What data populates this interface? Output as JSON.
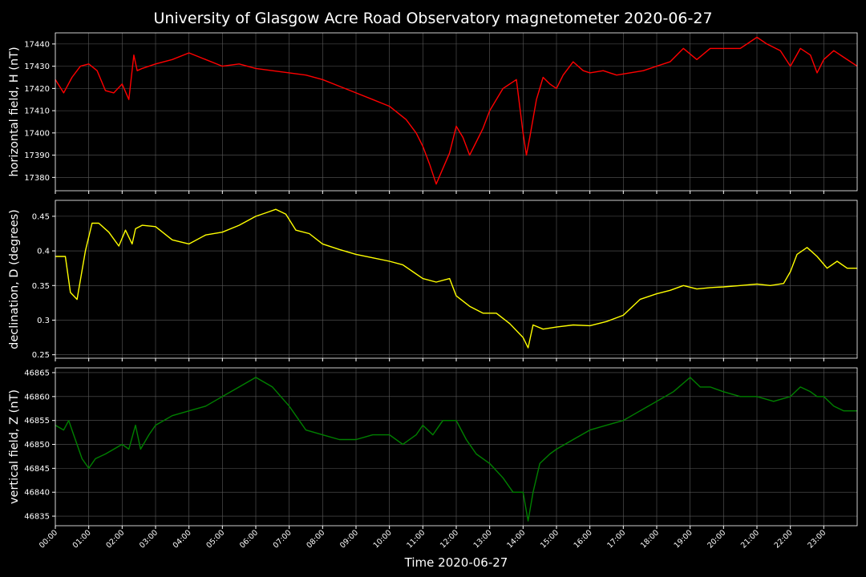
{
  "title": "University of Glasgow Acre Road Observatory magnetometer 2020-06-27",
  "colors": {
    "background": "#000000",
    "text": "#ffffff",
    "grid": "#5a5a5a"
  },
  "chart_data": [
    {
      "type": "line",
      "ylabel": "horizontal field, H (nT)",
      "color": "#ff0000",
      "ylim": [
        17374,
        17445
      ],
      "yticks": [
        17380,
        17390,
        17400,
        17410,
        17420,
        17430,
        17440
      ],
      "grid": true,
      "series": [
        {
          "x": [
            0,
            0.25,
            0.5,
            0.75,
            1.0,
            1.25,
            1.5,
            1.75,
            2.0,
            2.2,
            2.35,
            2.45,
            2.6,
            3.0,
            3.5,
            4.0,
            4.5,
            5.0,
            5.5,
            6.0,
            6.5,
            7.0,
            7.5,
            8.0,
            8.5,
            9.0,
            9.5,
            10.0,
            10.5,
            10.8,
            11.0,
            11.2,
            11.4,
            11.6,
            11.8,
            12.0,
            12.2,
            12.4,
            12.6,
            12.8,
            13.0,
            13.4,
            13.8,
            14.0,
            14.1,
            14.2,
            14.4,
            14.6,
            14.8,
            15.0,
            15.2,
            15.5,
            15.8,
            16.0,
            16.4,
            16.8,
            17.2,
            17.6,
            18.0,
            18.4,
            18.8,
            19.2,
            19.6,
            20.0,
            20.5,
            21.0,
            21.3,
            21.7,
            22.0,
            22.3,
            22.6,
            22.8,
            23.0,
            23.3,
            23.6,
            24.0
          ],
          "y": [
            17424,
            17418,
            17425,
            17430,
            17431,
            17428,
            17419,
            17418,
            17422,
            17415,
            17435,
            17428,
            17429,
            17431,
            17433,
            17436,
            17433,
            17430,
            17431,
            17429,
            17428,
            17427,
            17426,
            17424,
            17421,
            17418,
            17415,
            17412,
            17406,
            17400,
            17394,
            17386,
            17377,
            17384,
            17391,
            17403,
            17398,
            17390,
            17396,
            17402,
            17410,
            17420,
            17424,
            17400,
            17390,
            17398,
            17415,
            17425,
            17422,
            17420,
            17426,
            17432,
            17428,
            17427,
            17428,
            17426,
            17427,
            17428,
            17430,
            17432,
            17438,
            17433,
            17438,
            17438,
            17438,
            17443,
            17440,
            17437,
            17430,
            17438,
            17435,
            17427,
            17433,
            17437,
            17434,
            17430
          ]
        }
      ]
    },
    {
      "type": "line",
      "ylabel": "declination, D (degrees)",
      "color": "#ffff00",
      "ylim": [
        0.245,
        0.473
      ],
      "yticks": [
        0.25,
        0.3,
        0.35,
        0.4,
        0.45
      ],
      "grid": true,
      "series": [
        {
          "x": [
            0,
            0.3,
            0.45,
            0.65,
            0.9,
            1.1,
            1.3,
            1.6,
            1.9,
            2.1,
            2.3,
            2.4,
            2.6,
            3.0,
            3.5,
            4.0,
            4.5,
            5.0,
            5.5,
            6.0,
            6.3,
            6.6,
            6.9,
            7.2,
            7.6,
            8.0,
            8.5,
            9.0,
            9.5,
            10.0,
            10.4,
            10.7,
            11.0,
            11.4,
            11.8,
            12.0,
            12.4,
            12.8,
            13.2,
            13.6,
            14.0,
            14.15,
            14.3,
            14.6,
            15.0,
            15.5,
            16.0,
            16.5,
            17.0,
            17.5,
            18.0,
            18.4,
            18.8,
            19.2,
            19.6,
            20.0,
            20.5,
            21.0,
            21.4,
            21.8,
            22.0,
            22.2,
            22.5,
            22.8,
            23.1,
            23.4,
            23.7,
            24.0
          ],
          "y": [
            0.392,
            0.392,
            0.34,
            0.33,
            0.4,
            0.44,
            0.44,
            0.427,
            0.407,
            0.43,
            0.41,
            0.432,
            0.437,
            0.435,
            0.416,
            0.41,
            0.423,
            0.427,
            0.437,
            0.45,
            0.455,
            0.46,
            0.453,
            0.43,
            0.425,
            0.41,
            0.402,
            0.395,
            0.39,
            0.385,
            0.38,
            0.37,
            0.36,
            0.355,
            0.36,
            0.335,
            0.32,
            0.31,
            0.31,
            0.295,
            0.275,
            0.26,
            0.293,
            0.287,
            0.29,
            0.293,
            0.292,
            0.298,
            0.307,
            0.33,
            0.338,
            0.343,
            0.35,
            0.345,
            0.347,
            0.348,
            0.35,
            0.352,
            0.35,
            0.353,
            0.37,
            0.395,
            0.405,
            0.392,
            0.375,
            0.385,
            0.375,
            0.375
          ]
        }
      ]
    },
    {
      "type": "line",
      "ylabel": "vertical field, Z (nT)",
      "color": "#008000",
      "ylim": [
        46833,
        46866
      ],
      "yticks": [
        46835,
        46840,
        46845,
        46850,
        46855,
        46860,
        46865
      ],
      "grid": true,
      "series": [
        {
          "x": [
            0,
            0.25,
            0.4,
            0.55,
            0.8,
            1.0,
            1.2,
            1.5,
            2.0,
            2.2,
            2.4,
            2.55,
            2.8,
            3.0,
            3.5,
            4.0,
            4.5,
            5.0,
            5.5,
            6.0,
            6.5,
            7.0,
            7.5,
            8.0,
            8.5,
            9.0,
            9.5,
            10.0,
            10.4,
            10.8,
            11.0,
            11.3,
            11.6,
            12.0,
            12.3,
            12.6,
            13.0,
            13.4,
            13.7,
            14.0,
            14.15,
            14.3,
            14.5,
            14.8,
            15.0,
            15.5,
            16.0,
            16.5,
            17.0,
            17.5,
            18.0,
            18.5,
            19.0,
            19.3,
            19.6,
            20.0,
            20.5,
            21.0,
            21.5,
            22.0,
            22.3,
            22.6,
            22.8,
            23.0,
            23.3,
            23.6,
            24.0
          ],
          "y": [
            46854,
            46853,
            46855,
            46852,
            46847,
            46845,
            46847,
            46848,
            46850,
            46849,
            46854,
            46849,
            46852,
            46854,
            46856,
            46857,
            46858,
            46860,
            46862,
            46864,
            46862,
            46858,
            46853,
            46852,
            46851,
            46851,
            46852,
            46852,
            46850,
            46852,
            46854,
            46852,
            46855,
            46855,
            46851,
            46848,
            46846,
            46843,
            46840,
            46840,
            46834,
            46840,
            46846,
            46848,
            46849,
            46851,
            46853,
            46854,
            46855,
            46857,
            46859,
            46861,
            46864,
            46862,
            46862,
            46861,
            46860,
            46860,
            46859,
            46860,
            46862,
            46861,
            46860,
            46860,
            46858,
            46857,
            46857
          ]
        }
      ]
    }
  ],
  "x_axis": {
    "label": "Time 2020-06-27",
    "range": [
      0,
      24
    ],
    "ticks": [
      "00:00",
      "01:00",
      "02:00",
      "03:00",
      "04:00",
      "05:00",
      "06:00",
      "07:00",
      "08:00",
      "09:00",
      "10:00",
      "11:00",
      "12:00",
      "13:00",
      "14:00",
      "15:00",
      "16:00",
      "17:00",
      "18:00",
      "19:00",
      "20:00",
      "21:00",
      "22:00",
      "23:00"
    ]
  }
}
